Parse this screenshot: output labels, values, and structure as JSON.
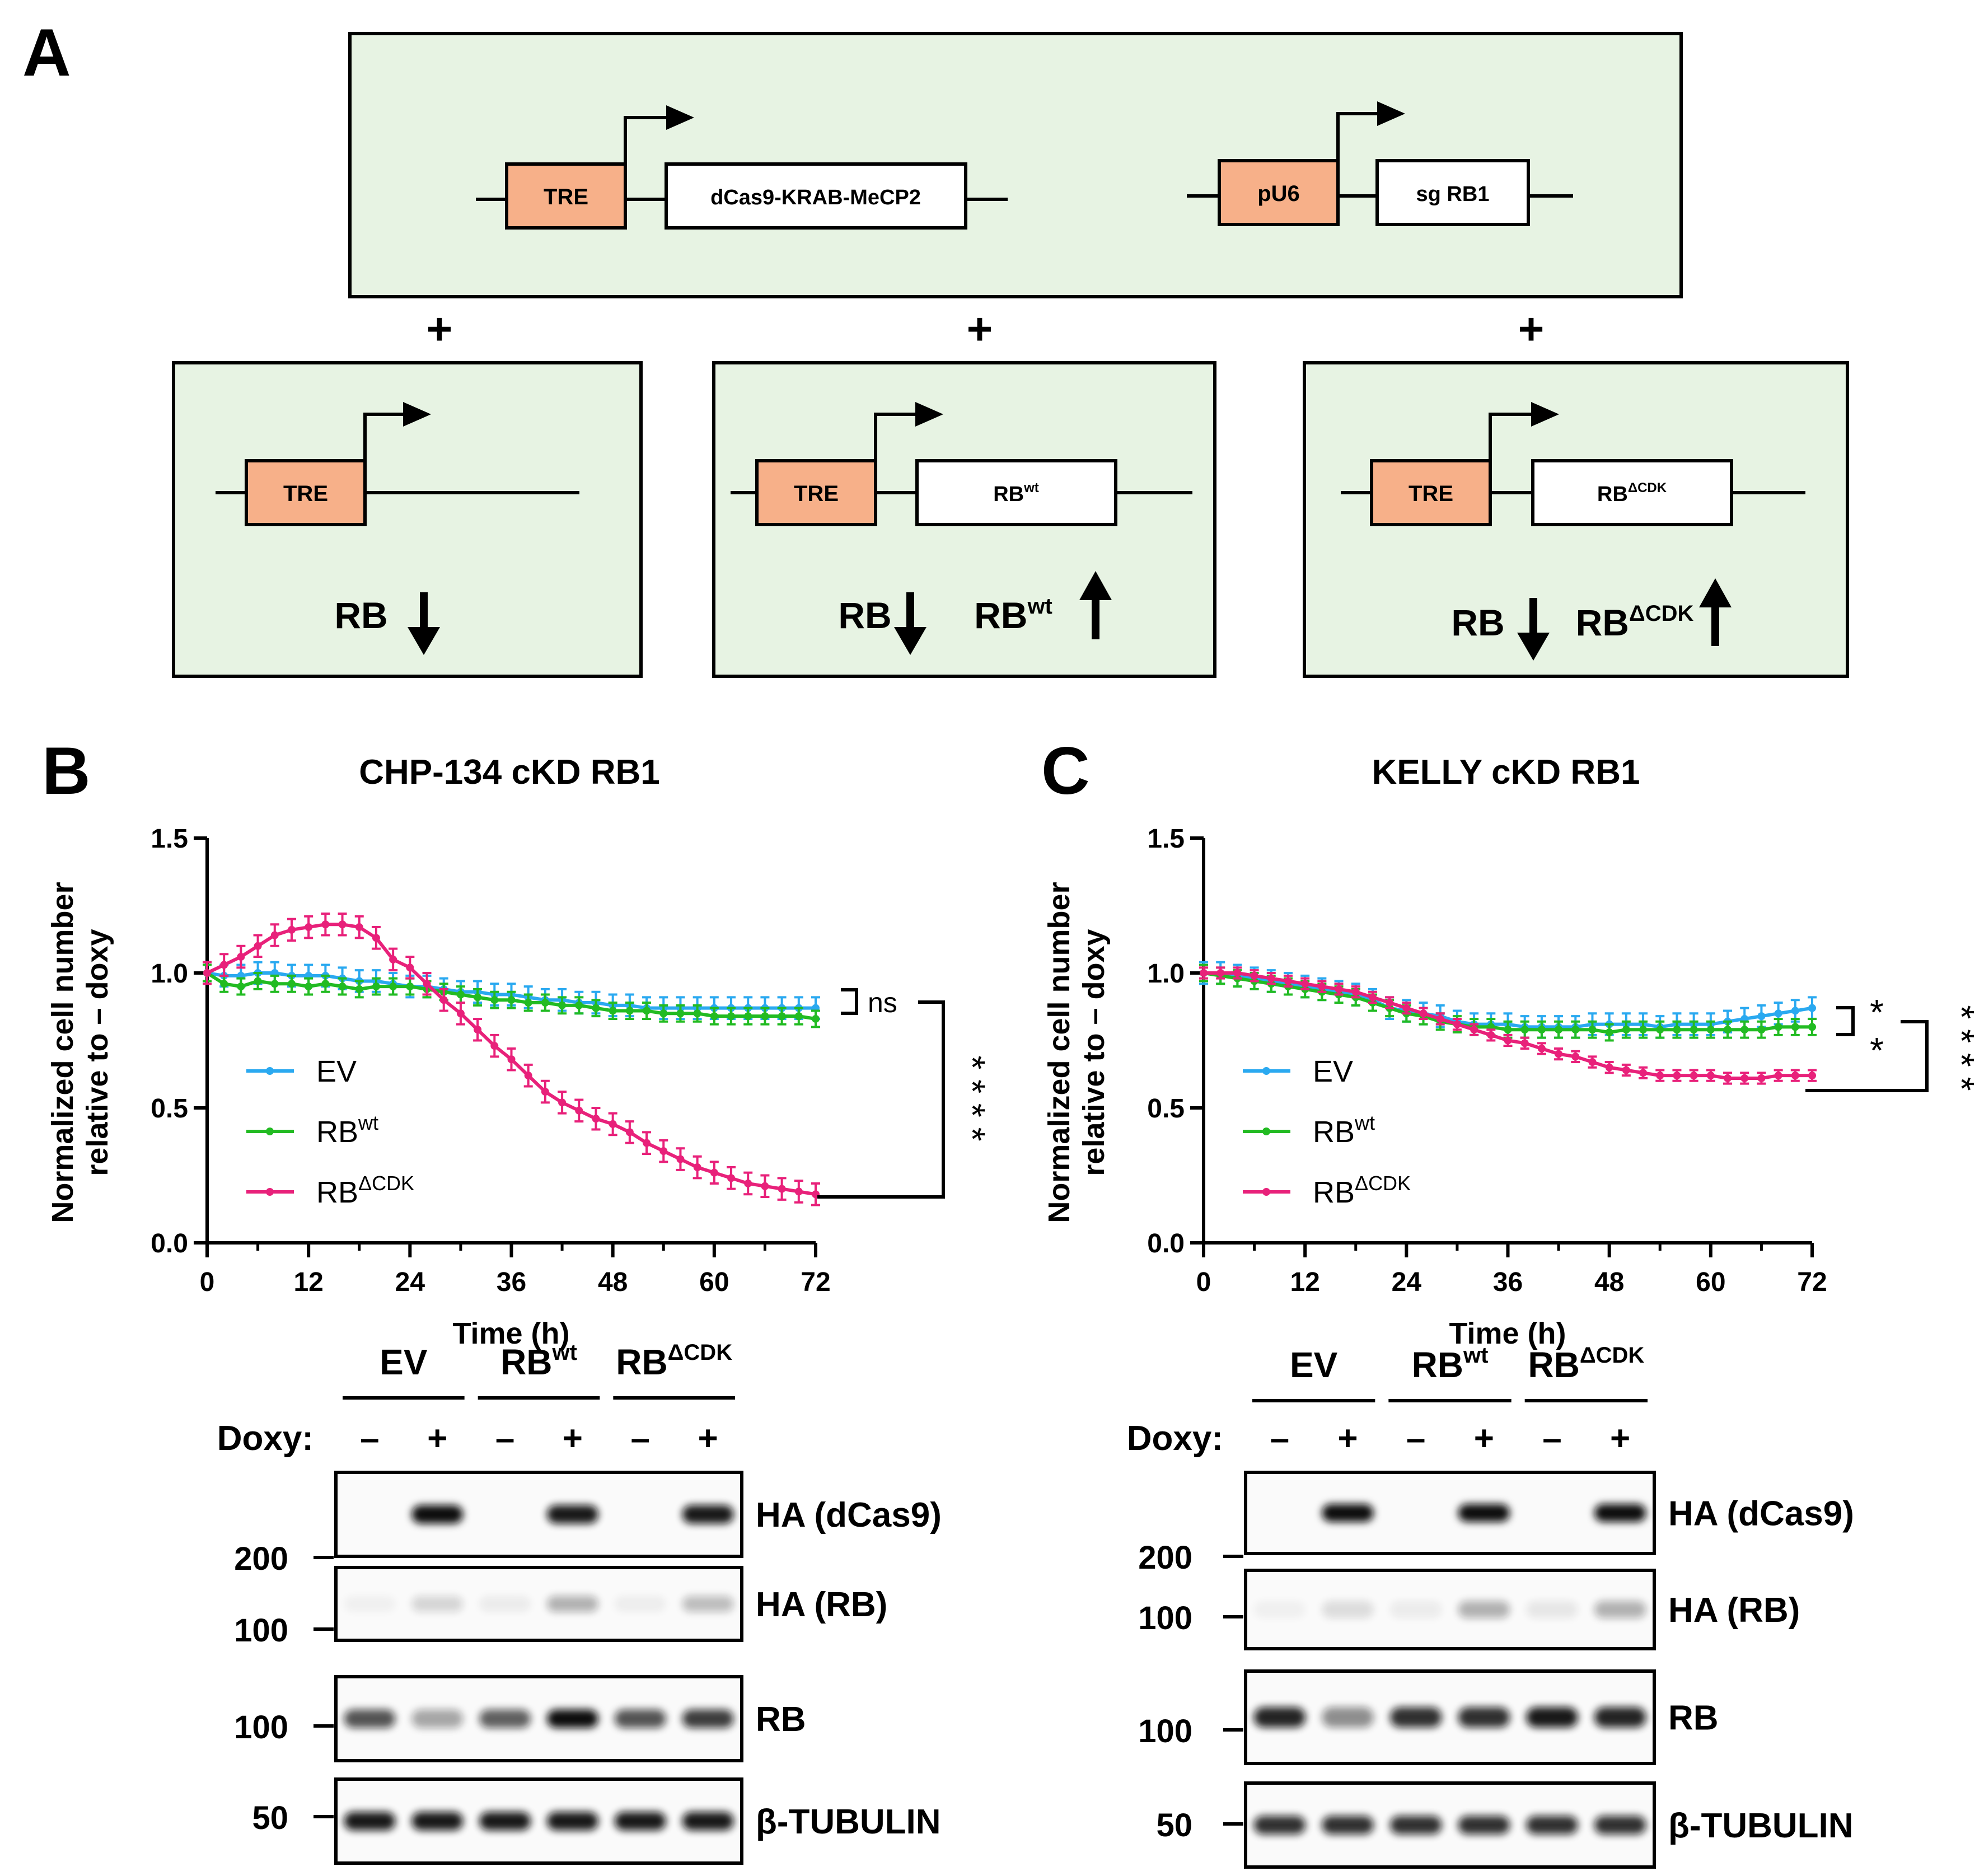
{
  "panel_a": {
    "letter": "A",
    "plus": "+",
    "top": {
      "tre": "TRE",
      "dcas9": "dCas9-KRAB-MeCP2",
      "pu6": "pU6",
      "sg": "sg RB1"
    },
    "boxes": [
      {
        "tre": "TRE",
        "insert": "",
        "insert_sup": "",
        "rb_down": "RB",
        "up": "",
        "up_sup": ""
      },
      {
        "tre": "TRE",
        "insert": "RB",
        "insert_sup": "wt",
        "rb_down": "RB",
        "up": "RB",
        "up_sup": "wt"
      },
      {
        "tre": "TRE",
        "insert": "RB",
        "insert_sup": "ΔCDK",
        "rb_down": "RB",
        "up": "RB",
        "up_sup": "ΔCDK"
      }
    ]
  },
  "legend": {
    "ev": "EV",
    "rb": "RB",
    "wt_sup": "wt",
    "dcdk_sup": "ΔCDK"
  },
  "chart_data": [
    {
      "type": "line",
      "panel": "B",
      "title": "CHP-134 cKD RB1",
      "xlabel": "Time (h)",
      "ylabel": "Normalized cell number relative to – doxy",
      "ylabel_line1": "Normalized cell number",
      "ylabel_line2": "relative to – doxy",
      "xlim": [
        0,
        72
      ],
      "ylim": [
        0,
        1.5
      ],
      "xticks": [
        "0",
        "12",
        "24",
        "36",
        "48",
        "60",
        "72"
      ],
      "yticks": [
        "0.0",
        "0.5",
        "1.0",
        "1.5"
      ],
      "grid": false,
      "legend_position": "center-left",
      "sig_ns": "ns",
      "sig_stars": "* * * *",
      "x": [
        0,
        2,
        4,
        6,
        8,
        10,
        12,
        14,
        16,
        18,
        20,
        22,
        24,
        26,
        28,
        30,
        32,
        34,
        36,
        38,
        40,
        42,
        44,
        46,
        48,
        50,
        52,
        54,
        56,
        58,
        60,
        62,
        64,
        66,
        68,
        70,
        72
      ],
      "series": [
        {
          "name": "EV",
          "color": "#2aa9f0",
          "values": [
            1.0,
            0.99,
            0.99,
            1.0,
            1.0,
            0.99,
            0.99,
            0.99,
            0.98,
            0.97,
            0.97,
            0.96,
            0.95,
            0.95,
            0.94,
            0.93,
            0.93,
            0.92,
            0.92,
            0.91,
            0.9,
            0.9,
            0.89,
            0.89,
            0.88,
            0.88,
            0.87,
            0.87,
            0.87,
            0.87,
            0.87,
            0.87,
            0.87,
            0.87,
            0.87,
            0.87,
            0.87
          ],
          "error": 0.04
        },
        {
          "name": "RBwt",
          "color": "#22bb22",
          "values": [
            1.0,
            0.96,
            0.95,
            0.97,
            0.96,
            0.96,
            0.95,
            0.96,
            0.95,
            0.94,
            0.95,
            0.95,
            0.95,
            0.94,
            0.93,
            0.92,
            0.91,
            0.9,
            0.9,
            0.89,
            0.89,
            0.88,
            0.88,
            0.87,
            0.86,
            0.86,
            0.86,
            0.85,
            0.85,
            0.85,
            0.84,
            0.84,
            0.84,
            0.84,
            0.84,
            0.84,
            0.83
          ],
          "error": 0.03
        },
        {
          "name": "RBΔCDK",
          "color": "#e8217a",
          "values": [
            1.0,
            1.03,
            1.06,
            1.1,
            1.14,
            1.16,
            1.17,
            1.18,
            1.18,
            1.17,
            1.13,
            1.05,
            1.02,
            0.96,
            0.9,
            0.85,
            0.79,
            0.73,
            0.68,
            0.62,
            0.56,
            0.52,
            0.49,
            0.46,
            0.44,
            0.41,
            0.37,
            0.34,
            0.31,
            0.28,
            0.26,
            0.24,
            0.22,
            0.21,
            0.2,
            0.19,
            0.18
          ],
          "error": 0.04
        }
      ]
    },
    {
      "type": "line",
      "panel": "C",
      "title": "KELLY cKD RB1",
      "xlabel": "Time (h)",
      "ylabel": "Normalized cell number relative to – doxy",
      "ylabel_line1": "Normalized cell number",
      "ylabel_line2": "relative to – doxy",
      "xlim": [
        0,
        72
      ],
      "ylim": [
        0,
        1.5
      ],
      "xticks": [
        "0",
        "12",
        "24",
        "36",
        "48",
        "60",
        "72"
      ],
      "yticks": [
        "0.0",
        "0.5",
        "1.0",
        "1.5"
      ],
      "grid": false,
      "legend_position": "center-left",
      "sig_top": "*",
      "sig_mid": "*",
      "sig_stars": "* * * *",
      "x": [
        0,
        2,
        4,
        6,
        8,
        10,
        12,
        14,
        16,
        18,
        20,
        22,
        24,
        26,
        28,
        30,
        32,
        34,
        36,
        38,
        40,
        42,
        44,
        46,
        48,
        50,
        52,
        54,
        56,
        58,
        60,
        62,
        64,
        66,
        68,
        70,
        72
      ],
      "series": [
        {
          "name": "EV",
          "color": "#2aa9f0",
          "values": [
            1.0,
            1.0,
            0.99,
            0.98,
            0.97,
            0.96,
            0.95,
            0.94,
            0.93,
            0.92,
            0.9,
            0.87,
            0.86,
            0.85,
            0.84,
            0.82,
            0.81,
            0.81,
            0.81,
            0.8,
            0.8,
            0.8,
            0.8,
            0.81,
            0.81,
            0.81,
            0.81,
            0.8,
            0.81,
            0.81,
            0.81,
            0.82,
            0.83,
            0.84,
            0.85,
            0.86,
            0.87
          ],
          "error": 0.04
        },
        {
          "name": "RBwt",
          "color": "#22bb22",
          "values": [
            1.0,
            0.99,
            0.98,
            0.97,
            0.96,
            0.95,
            0.94,
            0.93,
            0.92,
            0.91,
            0.89,
            0.87,
            0.85,
            0.84,
            0.82,
            0.81,
            0.8,
            0.8,
            0.79,
            0.79,
            0.79,
            0.79,
            0.79,
            0.79,
            0.78,
            0.79,
            0.79,
            0.79,
            0.79,
            0.79,
            0.79,
            0.79,
            0.79,
            0.79,
            0.8,
            0.8,
            0.8
          ],
          "error": 0.03
        },
        {
          "name": "RBΔCDK",
          "color": "#e8217a",
          "values": [
            1.0,
            1.0,
            1.0,
            0.99,
            0.98,
            0.97,
            0.96,
            0.95,
            0.94,
            0.93,
            0.91,
            0.89,
            0.87,
            0.85,
            0.83,
            0.81,
            0.79,
            0.77,
            0.75,
            0.74,
            0.72,
            0.7,
            0.69,
            0.67,
            0.65,
            0.64,
            0.63,
            0.62,
            0.62,
            0.62,
            0.62,
            0.61,
            0.61,
            0.61,
            0.62,
            0.62,
            0.62
          ],
          "error": 0.02
        }
      ]
    }
  ],
  "blots": [
    {
      "groups": [
        {
          "label": "EV",
          "sup": ""
        },
        {
          "label": "RB",
          "sup": "wt"
        },
        {
          "label": "RB",
          "sup": "ΔCDK"
        }
      ],
      "doxy_label": "Doxy:",
      "doxy": [
        "–",
        "+",
        "–",
        "+",
        "–",
        "+"
      ],
      "rows": [
        {
          "label": "HA (dCas9)",
          "marker": "200",
          "intensity": [
            0,
            1,
            0,
            0.95,
            0,
            0.95
          ]
        },
        {
          "label": "HA (RB)",
          "marker": "100",
          "intensity": [
            0.04,
            0.15,
            0.06,
            0.3,
            0.05,
            0.25
          ]
        },
        {
          "label": "RB",
          "marker": "100",
          "intensity": [
            0.7,
            0.35,
            0.65,
            1,
            0.7,
            0.8
          ]
        },
        {
          "label": "β-TUBULIN",
          "marker": "50",
          "intensity": [
            0.95,
            0.95,
            0.95,
            0.95,
            0.95,
            0.95
          ]
        }
      ]
    },
    {
      "groups": [
        {
          "label": "EV",
          "sup": ""
        },
        {
          "label": "RB",
          "sup": "wt"
        },
        {
          "label": "RB",
          "sup": "ΔCDK"
        }
      ],
      "doxy_label": "Doxy:",
      "doxy": [
        "–",
        "+",
        "–",
        "+",
        "–",
        "+"
      ],
      "rows": [
        {
          "label": "HA (dCas9)",
          "marker": "200",
          "intensity": [
            0,
            1,
            0,
            1,
            0,
            1
          ]
        },
        {
          "label": "HA (RB)",
          "marker": "100",
          "intensity": [
            0.04,
            0.12,
            0.06,
            0.3,
            0.08,
            0.3
          ]
        },
        {
          "label": "RB",
          "marker": "100",
          "intensity": [
            0.9,
            0.45,
            0.85,
            0.85,
            0.95,
            0.9
          ]
        },
        {
          "label": "β-TUBULIN",
          "marker": "50",
          "intensity": [
            0.85,
            0.85,
            0.85,
            0.85,
            0.85,
            0.85
          ]
        }
      ]
    }
  ]
}
